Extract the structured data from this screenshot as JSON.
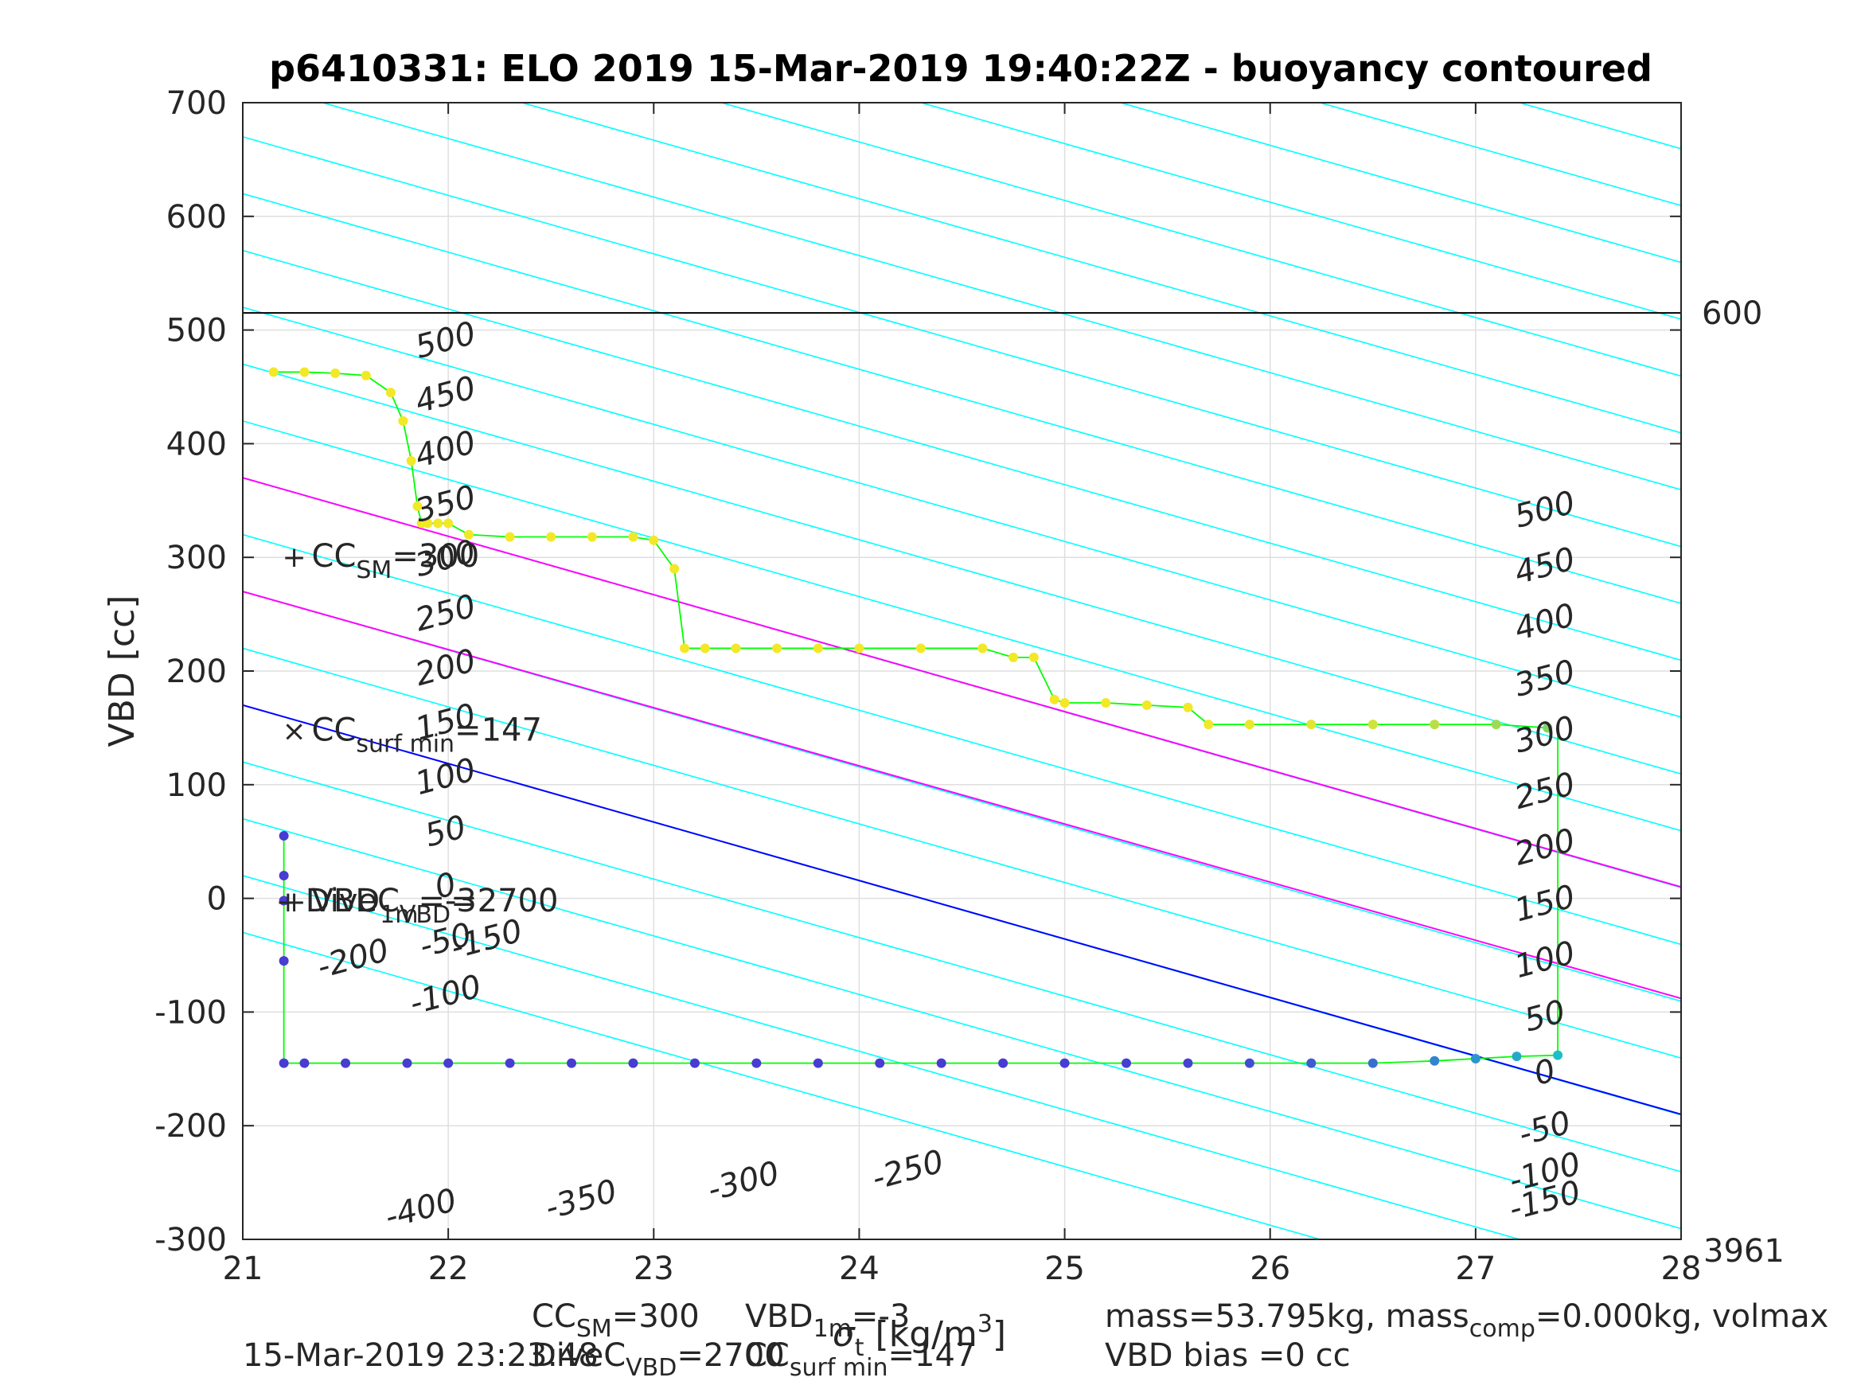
{
  "chart_data": {
    "type": "scatter",
    "title": "p6410331: ELO 2019 15-Mar-2019 19:40:22Z - buoyancy contoured",
    "xlabel_parts": [
      "σ",
      "t",
      " [kg/m",
      "3",
      "]"
    ],
    "ylabel": "VBD [cc]",
    "xlim": [
      21,
      28
    ],
    "ylim": [
      -300,
      700
    ],
    "x_ticks": [
      "21",
      "22",
      "23",
      "24",
      "25",
      "26",
      "27",
      "28"
    ],
    "y_ticks": [
      "-300",
      "-200",
      "-100",
      "0",
      "100",
      "200",
      "300",
      "400",
      "500",
      "600",
      "700"
    ],
    "grid": true,
    "colors": {
      "contours": "#00ffff",
      "reference_lines": "#ff00ff",
      "zero_line": "#0000ff",
      "limit_line": "#000000",
      "trace": "#00ff00",
      "marker": "#ff0000",
      "dive_points": "#ffff00",
      "climb_points": "#4040d0"
    },
    "contour_levels_left": [
      "500",
      "450",
      "400",
      "350",
      "300",
      "250",
      "200",
      "150",
      "100",
      "50",
      "0",
      "-50",
      "-100",
      "-150",
      "-200"
    ],
    "contour_levels_right": [
      "500",
      "450",
      "400",
      "350",
      "300",
      "250",
      "200",
      "150",
      "100",
      "50",
      "0",
      "-50",
      "-100",
      "-150"
    ],
    "contour_levels_bottom": [
      "-400",
      "-350",
      "-300",
      "-250"
    ],
    "right_labels": {
      "top": "600",
      "bottom": "3961"
    },
    "horizontal_line_vbd": 515,
    "magenta_lines": [
      {
        "x": [
          21,
          28
        ],
        "y": [
          370,
          10
        ]
      },
      {
        "x": [
          21,
          28
        ],
        "y": [
          270,
          -88
        ]
      }
    ],
    "blue_line": {
      "x": [
        21,
        28
      ],
      "y": [
        170,
        -190
      ]
    },
    "markers": [
      {
        "symbol": "+",
        "x": 21.25,
        "y": 300,
        "label_parts": [
          "CC",
          "SM",
          "=300"
        ]
      },
      {
        "symbol": "×",
        "x": 21.25,
        "y": 147,
        "label_parts": [
          "CC",
          "surf min",
          "=147"
        ]
      },
      {
        "symbol": "+",
        "x": 21.25,
        "y": -3,
        "label_parts": [
          "VBD",
          "1m",
          "=-3"
        ]
      },
      {
        "symbol": "+",
        "x": 21.22,
        "y": -3,
        "label_parts": [
          "DiveC",
          "VBD",
          "=2700"
        ]
      }
    ],
    "dive_series": {
      "name": "dive",
      "x": [
        21.15,
        21.3,
        21.45,
        21.6,
        21.72,
        21.78,
        21.82,
        21.85,
        21.87,
        21.9,
        21.95,
        22.0,
        22.1,
        22.3,
        22.5,
        22.7,
        22.9,
        23.0,
        23.1,
        23.15,
        23.25,
        23.4,
        23.6,
        23.8,
        24.0,
        24.3,
        24.6,
        24.75,
        24.85,
        24.95,
        25.0,
        25.2,
        25.4,
        25.6,
        25.7,
        25.9,
        26.2,
        26.5,
        26.8,
        27.1,
        27.35
      ],
      "y": [
        463,
        463,
        462,
        460,
        445,
        420,
        385,
        345,
        330,
        330,
        330,
        330,
        320,
        318,
        318,
        318,
        318,
        315,
        290,
        220,
        220,
        220,
        220,
        220,
        220,
        220,
        220,
        212,
        212,
        175,
        172,
        172,
        170,
        168,
        153,
        153,
        153,
        153,
        153,
        153,
        150
      ]
    },
    "climb_series": {
      "name": "climb",
      "x": [
        21.2,
        21.2,
        21.2,
        21.2,
        21.2,
        21.3,
        21.5,
        21.8,
        22.0,
        22.3,
        22.6,
        22.9,
        23.2,
        23.5,
        23.8,
        24.1,
        24.4,
        24.7,
        25.0,
        25.3,
        25.6,
        25.9,
        26.2,
        26.5,
        26.8,
        27.0,
        27.2,
        27.4
      ],
      "y": [
        55,
        20,
        -2,
        -55,
        -145,
        -145,
        -145,
        -145,
        -145,
        -145,
        -145,
        -145,
        -145,
        -145,
        -145,
        -145,
        -145,
        -145,
        -145,
        -145,
        -145,
        -145,
        -145,
        -145,
        -143,
        -141,
        -139,
        -138
      ]
    }
  },
  "footer": {
    "ccsm_parts": [
      "CC",
      "SM",
      "=300"
    ],
    "vbd1m_parts": [
      "VBD",
      "1m",
      "=-3"
    ],
    "mass_text": "mass=53.795kg, mass",
    "mass_comp_sub": "comp",
    "mass_comp_tail": "=0.000kg, volmax",
    "timestamp": "15-Mar-2019 23:23:48",
    "divec_parts": [
      "DiveC",
      "VBD",
      "=2700"
    ],
    "ccsurf_parts": [
      "CC",
      "surf min",
      "=147"
    ],
    "vbd_bias": "VBD bias =0 cc"
  }
}
